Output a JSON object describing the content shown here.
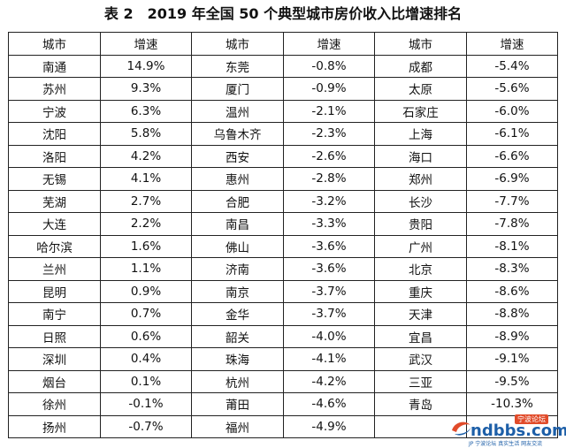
{
  "title": "表 2　2019 年全国 50 个典型城市房价收入比增速排名",
  "headers": [
    "城市",
    "增速",
    "城市",
    "增速",
    "城市",
    "增速"
  ],
  "rows": [
    [
      "南通",
      "14.9%",
      "东莞",
      "-0.8%",
      "成都",
      "-5.4%"
    ],
    [
      "苏州",
      "9.3%",
      "厦门",
      "-0.9%",
      "太原",
      "-5.6%"
    ],
    [
      "宁波",
      "6.3%",
      "温州",
      "-2.1%",
      "石家庄",
      "-6.0%"
    ],
    [
      "沈阳",
      "5.8%",
      "乌鲁木齐",
      "-2.3%",
      "上海",
      "-6.1%"
    ],
    [
      "洛阳",
      "4.2%",
      "西安",
      "-2.6%",
      "海口",
      "-6.6%"
    ],
    [
      "无锡",
      "4.1%",
      "惠州",
      "-2.8%",
      "郑州",
      "-6.9%"
    ],
    [
      "芜湖",
      "2.7%",
      "合肥",
      "-3.2%",
      "长沙",
      "-7.7%"
    ],
    [
      "大连",
      "2.2%",
      "南昌",
      "-3.3%",
      "贵阳",
      "-7.8%"
    ],
    [
      "哈尔滨",
      "1.6%",
      "佛山",
      "-3.6%",
      "广州",
      "-8.1%"
    ],
    [
      "兰州",
      "1.1%",
      "济南",
      "-3.6%",
      "北京",
      "-8.3%"
    ],
    [
      "昆明",
      "0.9%",
      "南京",
      "-3.7%",
      "重庆",
      "-8.6%"
    ],
    [
      "南宁",
      "0.7%",
      "金华",
      "-3.7%",
      "天津",
      "-8.8%"
    ],
    [
      "日照",
      "0.6%",
      "韶关",
      "-4.0%",
      "宜昌",
      "-8.9%"
    ],
    [
      "深圳",
      "0.4%",
      "珠海",
      "-4.1%",
      "武汉",
      "-9.1%"
    ],
    [
      "烟台",
      "0.1%",
      "杭州",
      "-4.2%",
      "三亚",
      "-9.5%"
    ],
    [
      "徐州",
      "-0.1%",
      "莆田",
      "-4.6%",
      "青岛",
      "-10.3%"
    ],
    [
      "扬州",
      "-0.7%",
      "福州",
      "-4.9%",
      "",
      ""
    ]
  ],
  "watermark": {
    "badge": "宁波论坛",
    "text": "ndbbs.com",
    "sub": "JP 宁波论坛 真实生活 网友交流"
  }
}
